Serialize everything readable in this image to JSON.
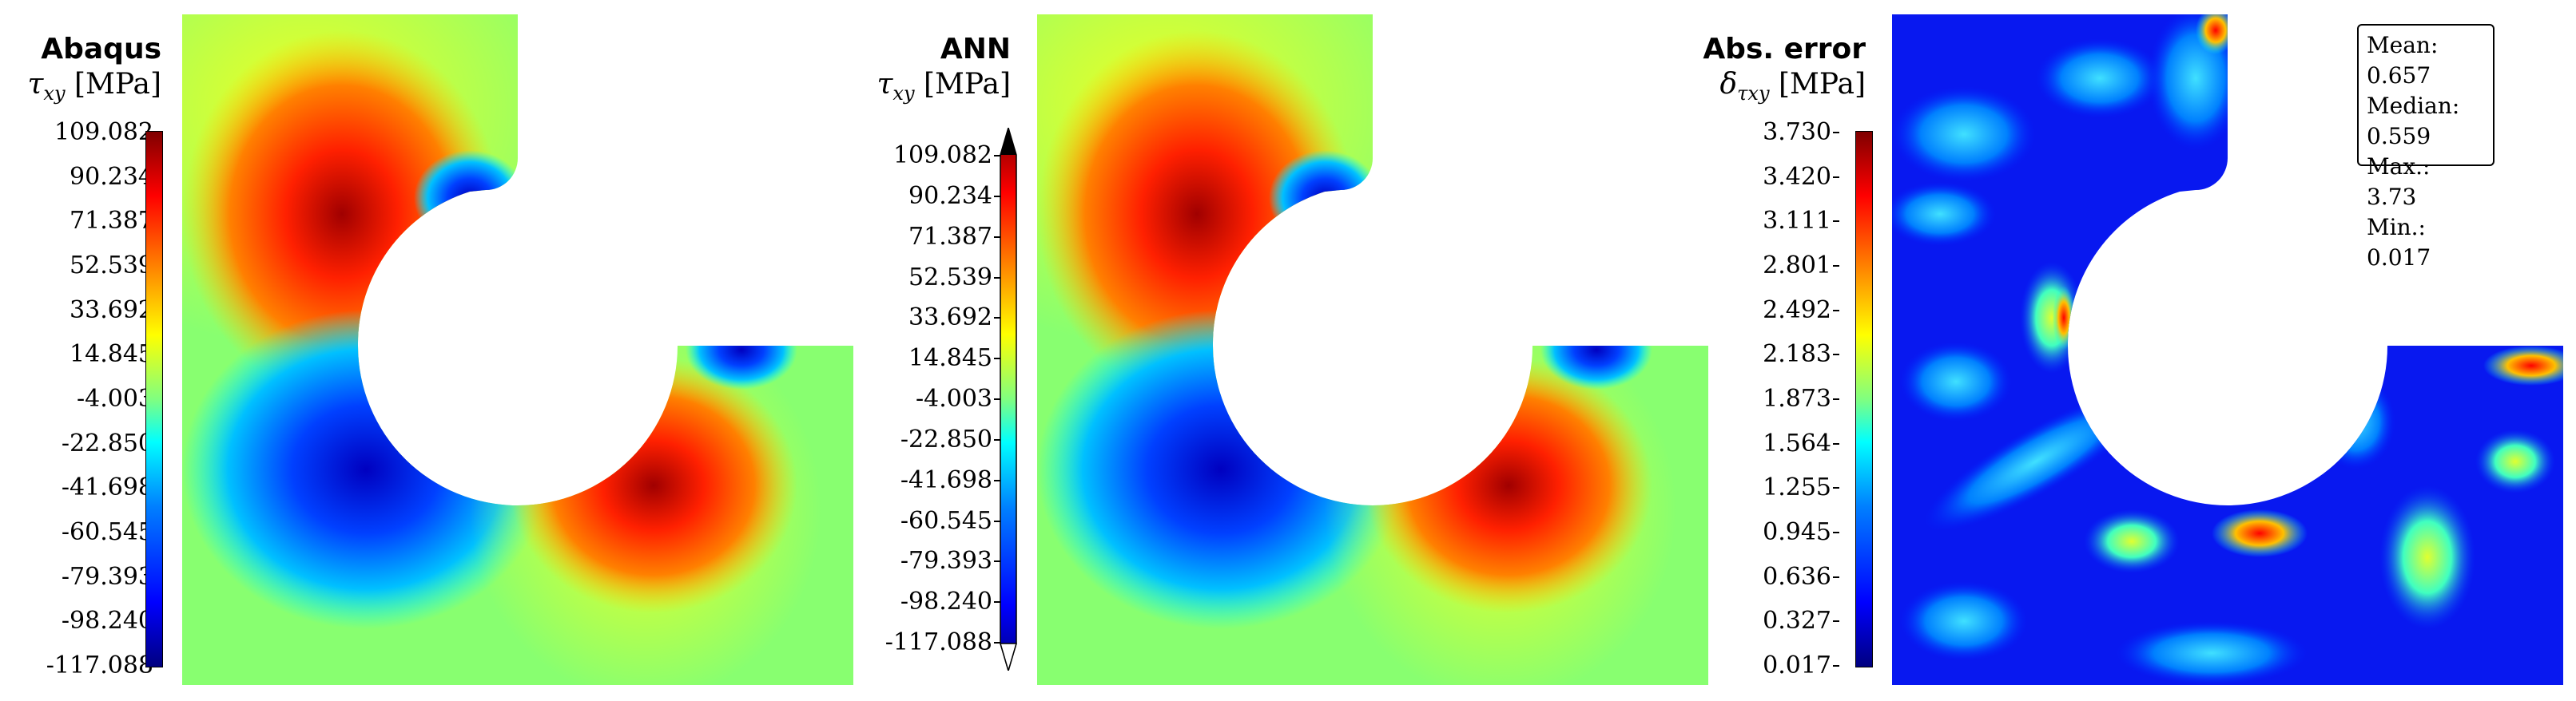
{
  "panels": [
    {
      "title_line1": "Abaqus",
      "symbol": "τ",
      "symbol_sub": "xy",
      "unit": "[MPa]",
      "colorbar_ticks": [
        "109.082",
        "90.234",
        "71.387",
        "52.539",
        "33.692",
        "14.845",
        "-4.003",
        "-22.850",
        "-41.698",
        "-60.545",
        "-79.393",
        "-98.240",
        "-117.088"
      ],
      "colorbar_extend": false
    },
    {
      "title_line1": "ANN",
      "symbol": "τ",
      "symbol_sub": "xy",
      "unit": "[MPa]",
      "colorbar_ticks": [
        "109.082",
        "90.234",
        "71.387",
        "52.539",
        "33.692",
        "14.845",
        "-4.003",
        "-22.850",
        "-41.698",
        "-60.545",
        "-79.393",
        "-98.240",
        "-117.088"
      ],
      "colorbar_extend": true
    },
    {
      "title_line1": "Abs. error",
      "symbol": "δ",
      "symbol_sub": "τxy",
      "unit": "[MPa]",
      "colorbar_ticks": [
        "3.730",
        "3.420",
        "3.111",
        "2.801",
        "2.492",
        "2.183",
        "1.873",
        "1.564",
        "1.255",
        "0.945",
        "0.636",
        "0.327",
        "0.017"
      ],
      "colorbar_extend": false
    }
  ],
  "stats": {
    "mean": "Mean: 0.657",
    "median": "Median: 0.559",
    "max": "Max.: 3.73",
    "min": "Min.: 0.017"
  },
  "colors": {
    "max": "#800000",
    "high": "#ff0000",
    "mid_high": "#ffff00",
    "neutral": "#80ff80",
    "mid_low": "#00ffff",
    "low": "#0000ff",
    "min": "#000080"
  }
}
